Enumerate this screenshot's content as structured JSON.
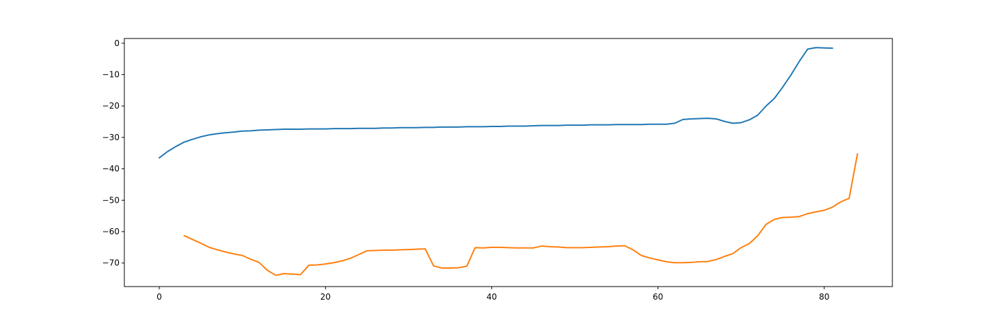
{
  "chart_data": {
    "type": "line",
    "title": "",
    "xlabel": "",
    "ylabel": "",
    "xlim": [
      -4.2,
      88.2
    ],
    "ylim": [
      -77.5,
      1.5
    ],
    "xticks": [
      0,
      20,
      40,
      60,
      80
    ],
    "yticks": [
      0,
      -10,
      -20,
      -30,
      -40,
      -50,
      -60,
      -70
    ],
    "xtick_labels": [
      "0",
      "20",
      "40",
      "60",
      "80"
    ],
    "ytick_labels": [
      "0",
      "−10",
      "−20",
      "−30",
      "−40",
      "−50",
      "−60",
      "−70"
    ],
    "grid": false,
    "series": [
      {
        "color": "#1f77b4",
        "x": [
          0,
          1,
          2,
          3,
          4,
          5,
          6,
          7,
          8,
          9,
          10,
          11,
          12,
          13,
          14,
          15,
          16,
          17,
          18,
          19,
          20,
          21,
          22,
          23,
          24,
          25,
          26,
          27,
          28,
          29,
          30,
          31,
          32,
          33,
          34,
          35,
          36,
          37,
          38,
          39,
          40,
          41,
          42,
          43,
          44,
          45,
          46,
          47,
          48,
          49,
          50,
          51,
          52,
          53,
          54,
          55,
          56,
          57,
          58,
          59,
          60,
          61,
          62,
          63,
          64,
          65,
          66,
          67,
          68,
          69,
          70,
          71,
          72,
          73,
          74,
          75,
          76,
          77,
          78,
          79,
          80,
          81
        ],
        "y": [
          -36.5,
          -34.5,
          -32.9,
          -31.5,
          -30.6,
          -29.8,
          -29.2,
          -28.8,
          -28.5,
          -28.3,
          -28.0,
          -27.9,
          -27.7,
          -27.6,
          -27.5,
          -27.4,
          -27.4,
          -27.4,
          -27.3,
          -27.3,
          -27.3,
          -27.2,
          -27.2,
          -27.2,
          -27.1,
          -27.1,
          -27.1,
          -27.0,
          -27.0,
          -26.9,
          -26.9,
          -26.9,
          -26.8,
          -26.8,
          -26.7,
          -26.7,
          -26.7,
          -26.6,
          -26.6,
          -26.6,
          -26.5,
          -26.5,
          -26.4,
          -26.4,
          -26.4,
          -26.3,
          -26.2,
          -26.2,
          -26.2,
          -26.1,
          -26.1,
          -26.1,
          -26.0,
          -26.0,
          -26.0,
          -25.9,
          -25.9,
          -25.9,
          -25.9,
          -25.8,
          -25.8,
          -25.8,
          -25.5,
          -24.3,
          -24.1,
          -24.0,
          -23.9,
          -24.1,
          -24.9,
          -25.5,
          -25.3,
          -24.4,
          -22.9,
          -20.0,
          -17.6,
          -14.0,
          -10.1,
          -5.8,
          -1.9,
          -1.4,
          -1.5,
          -1.6
        ]
      },
      {
        "color": "#ff7f0e",
        "x": [
          3,
          4,
          5,
          6,
          7,
          8,
          9,
          10,
          11,
          12,
          13,
          14,
          15,
          16,
          17,
          18,
          19,
          20,
          21,
          22,
          23,
          24,
          25,
          26,
          27,
          28,
          29,
          30,
          31,
          32,
          33,
          34,
          35,
          36,
          37,
          38,
          39,
          40,
          41,
          42,
          43,
          44,
          45,
          46,
          47,
          48,
          49,
          50,
          51,
          52,
          53,
          54,
          55,
          56,
          57,
          58,
          59,
          60,
          61,
          62,
          63,
          64,
          65,
          66,
          67,
          68,
          69,
          70,
          71,
          72,
          73,
          74,
          75,
          76,
          77,
          78,
          79,
          80,
          81,
          82,
          83,
          84
        ],
        "y": [
          -61.3,
          -62.5,
          -63.7,
          -65.0,
          -65.8,
          -66.5,
          -67.1,
          -67.6,
          -68.8,
          -69.8,
          -72.3,
          -73.9,
          -73.4,
          -73.5,
          -73.7,
          -70.7,
          -70.6,
          -70.3,
          -69.9,
          -69.3,
          -68.5,
          -67.3,
          -66.1,
          -66.0,
          -65.9,
          -65.9,
          -65.8,
          -65.7,
          -65.6,
          -65.5,
          -70.9,
          -71.6,
          -71.6,
          -71.5,
          -71.0,
          -65.1,
          -65.2,
          -65.0,
          -65.0,
          -65.1,
          -65.2,
          -65.2,
          -65.2,
          -64.6,
          -64.8,
          -64.9,
          -65.1,
          -65.1,
          -65.1,
          -65.0,
          -64.9,
          -64.8,
          -64.6,
          -64.5,
          -65.8,
          -67.6,
          -68.4,
          -69.0,
          -69.6,
          -69.9,
          -69.9,
          -69.8,
          -69.6,
          -69.5,
          -68.9,
          -67.9,
          -67.0,
          -65.1,
          -63.8,
          -61.3,
          -57.7,
          -56.1,
          -55.5,
          -55.4,
          -55.2,
          -54.3,
          -53.7,
          -53.2,
          -52.2,
          -50.5,
          -49.4,
          -35.2
        ]
      }
    ]
  }
}
